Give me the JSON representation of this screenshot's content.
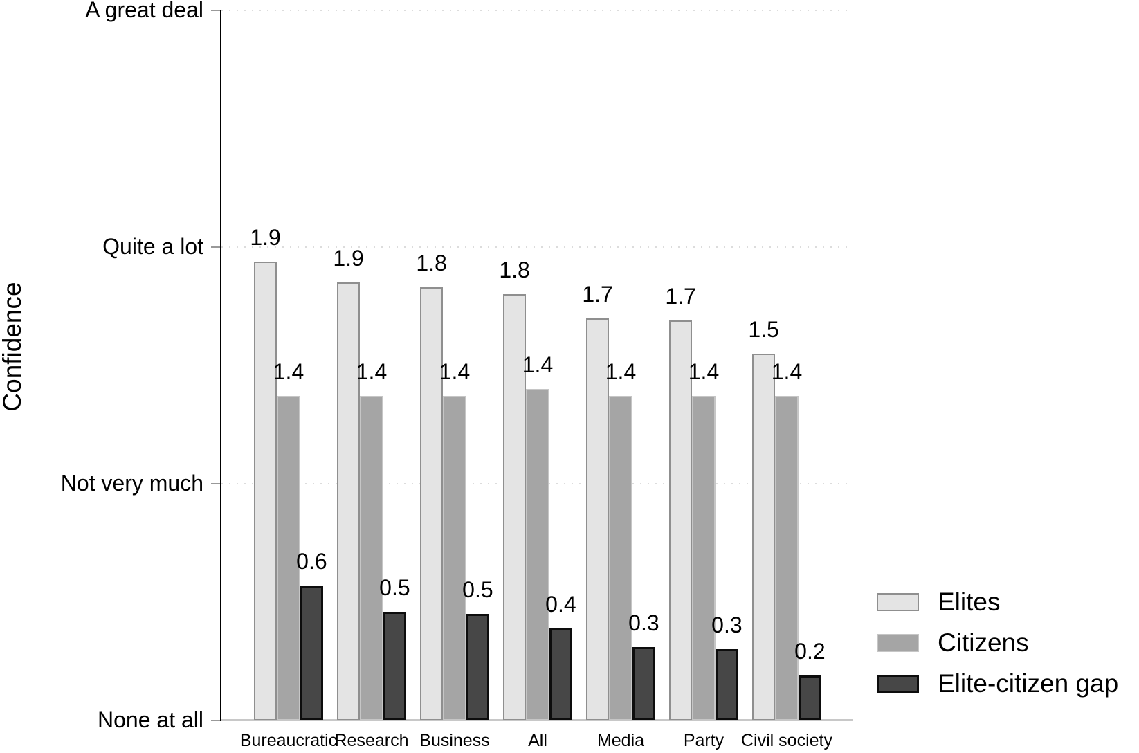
{
  "chart_data": {
    "type": "bar",
    "title": "",
    "ylabel": "Confidence",
    "xlabel": "",
    "categories": [
      "Bureaucratic",
      "Research",
      "Business",
      "All",
      "Media",
      "Party",
      "Civil society"
    ],
    "y_axis": {
      "ylim": [
        0,
        3
      ],
      "tick_values": [
        0,
        1,
        2,
        3
      ],
      "tick_labels": [
        "None at all",
        "Not very much",
        "Quite a lot",
        "A great deal"
      ],
      "gridlines": "dotted horizontal line at every tick"
    },
    "bar_value_labels_shown": true,
    "legend_position": "right side, lower half",
    "series": [
      {
        "name": "Elites",
        "fill": "#e4e4e4",
        "border": "#8f8f8f",
        "values": [
          1.9,
          1.9,
          1.8,
          1.8,
          1.7,
          1.7,
          1.5
        ],
        "plotted_values": [
          1.94,
          1.85,
          1.83,
          1.8,
          1.7,
          1.69,
          1.55
        ]
      },
      {
        "name": "Citizens",
        "fill": "#a5a5a5",
        "border": "#c6c6c6",
        "values": [
          1.4,
          1.4,
          1.4,
          1.4,
          1.4,
          1.4,
          1.4
        ],
        "plotted_values": [
          1.37,
          1.37,
          1.37,
          1.4,
          1.37,
          1.37,
          1.37
        ]
      },
      {
        "name": "Elite-citizen gap",
        "fill": "#474747",
        "border": "#0d0d0d",
        "values": [
          0.6,
          0.5,
          0.5,
          0.4,
          0.3,
          0.3,
          0.2
        ],
        "plotted_values": [
          0.57,
          0.46,
          0.45,
          0.39,
          0.31,
          0.3,
          0.19
        ]
      }
    ],
    "colors": {
      "background": "#ffffff",
      "gridline": "#dcdcdc",
      "axis_line": "#000000",
      "tick_mark": "#999999",
      "baseline": "#c8c8c8",
      "text": "#000000"
    }
  }
}
